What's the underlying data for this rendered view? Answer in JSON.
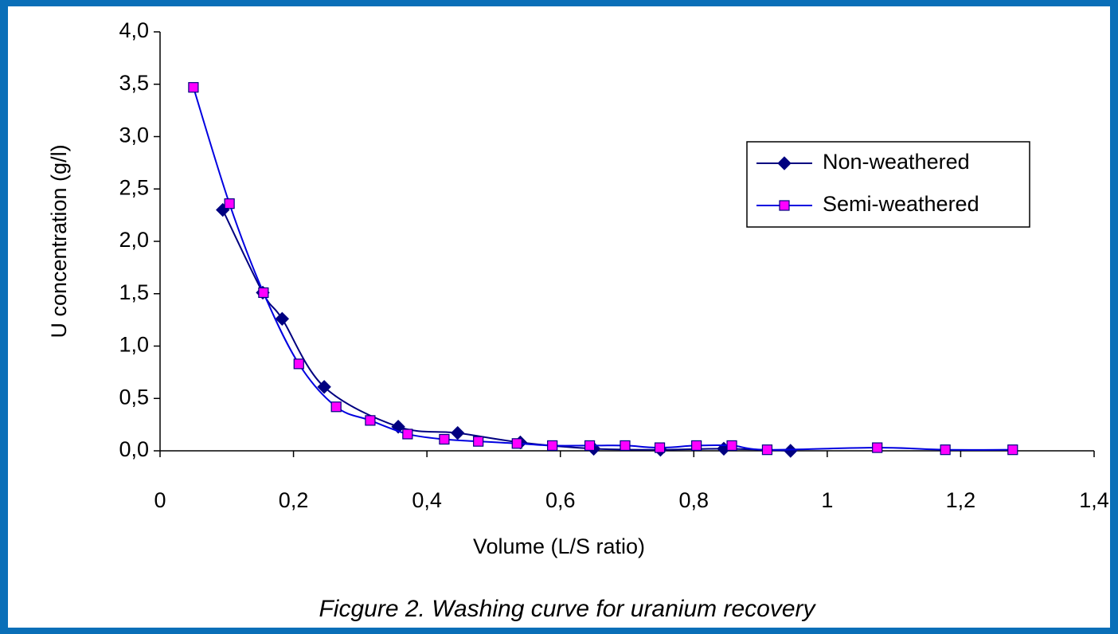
{
  "chart_data": {
    "type": "line",
    "title": "Ficgure 2. Washing curve for uranium recovery",
    "x_label": "Volume (L/S ratio)",
    "y_label": "U concentration (g/l)",
    "xlim": [
      0,
      1.4
    ],
    "xticks": [
      0,
      {
        "value": 0.2,
        "label": "0,2"
      },
      {
        "value": 0.4,
        "label": "0,4"
      },
      {
        "value": 0.6,
        "label": "0,6"
      },
      {
        "value": 0.8,
        "label": "0,8"
      },
      1,
      {
        "value": 1.2,
        "label": "1,2"
      },
      {
        "value": 1.4,
        "label": "1,4"
      }
    ],
    "ylim": [
      0,
      4
    ],
    "yticks": [
      {
        "value": 0,
        "label": "0,0"
      },
      {
        "value": 0.5,
        "label": "0,5"
      },
      {
        "value": 1,
        "label": "1,0"
      },
      {
        "value": 1.5,
        "label": "1,5"
      },
      {
        "value": 2,
        "label": "2,0"
      },
      {
        "value": 2.5,
        "label": "2,5"
      },
      {
        "value": 3,
        "label": "3,0"
      },
      {
        "value": 3.5,
        "label": "3,5"
      },
      {
        "value": 4,
        "label": "4,0"
      }
    ],
    "grid": false,
    "legend_position": "upper right",
    "series": [
      {
        "name": "Non-weathered",
        "color": "#000080",
        "marker": "diamond",
        "x": [
          0.094,
          0.154,
          0.183,
          0.246,
          0.357,
          0.446,
          0.54,
          0.65,
          0.75,
          0.845,
          0.945
        ],
        "values": [
          2.3,
          1.51,
          1.26,
          0.61,
          0.23,
          0.17,
          0.08,
          0.02,
          0.01,
          0.02,
          0.0
        ]
      },
      {
        "name": "Semi-weathered",
        "color": "#0000e0",
        "marker_color": "#ff00ff",
        "marker": "square",
        "x": [
          0.05,
          0.104,
          0.155,
          0.208,
          0.264,
          0.315,
          0.371,
          0.426,
          0.477,
          0.535,
          0.588,
          0.644,
          0.697,
          0.749,
          0.804,
          0.857,
          0.91,
          1.075,
          1.177,
          1.278
        ],
        "values": [
          3.47,
          2.36,
          1.51,
          0.83,
          0.42,
          0.29,
          0.16,
          0.11,
          0.09,
          0.07,
          0.05,
          0.05,
          0.05,
          0.03,
          0.05,
          0.05,
          0.01,
          0.03,
          0.01,
          0.01
        ]
      }
    ]
  }
}
